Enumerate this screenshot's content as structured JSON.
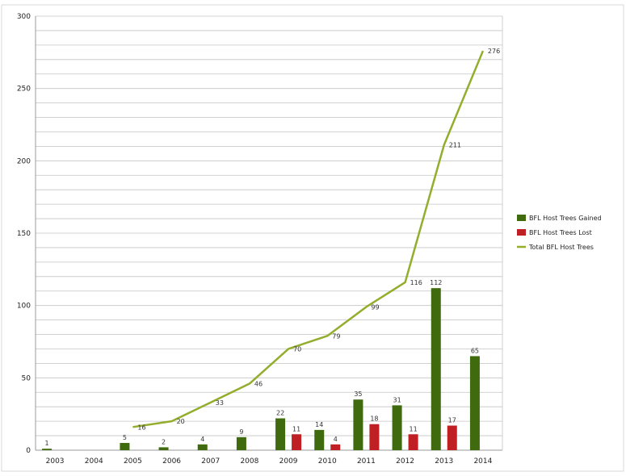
{
  "chart_data": {
    "type": "bar",
    "categories": [
      "2003",
      "2004",
      "2005",
      "2006",
      "2007",
      "2008",
      "2009",
      "2010",
      "2011",
      "2012",
      "2013",
      "2014"
    ],
    "series": [
      {
        "name": "BFL Host Trees Gained",
        "kind": "bar",
        "color": "#3f6a0d",
        "values": [
          1,
          null,
          5,
          2,
          4,
          9,
          22,
          14,
          35,
          31,
          112,
          65
        ],
        "labels": [
          "1",
          "",
          "5",
          "2",
          "4",
          "9",
          "22",
          "14",
          "35",
          "31",
          "112",
          "65"
        ]
      },
      {
        "name": "BFL Host Trees Lost",
        "kind": "bar",
        "color": "#c01f24",
        "values": [
          null,
          null,
          null,
          null,
          null,
          null,
          11,
          4,
          18,
          11,
          17,
          null
        ],
        "labels": [
          "",
          "",
          "",
          "",
          "",
          "",
          "11",
          "4",
          "18",
          "11",
          "17",
          ""
        ]
      },
      {
        "name": "Total BFL Host Trees",
        "kind": "line",
        "color": "#93ad2d",
        "values": [
          null,
          null,
          16,
          20,
          33,
          46,
          70,
          79,
          99,
          116,
          211,
          276
        ],
        "labels": [
          "",
          "",
          "16",
          "20",
          "33",
          "46",
          "70",
          "79",
          "99",
          "116",
          "211",
          "276"
        ]
      }
    ],
    "yticks": [
      "0",
      "50",
      "100",
      "150",
      "200",
      "250",
      "300"
    ],
    "ylim": [
      0,
      300
    ],
    "grid": true,
    "gridline_step": 10,
    "legend_position": "right"
  }
}
